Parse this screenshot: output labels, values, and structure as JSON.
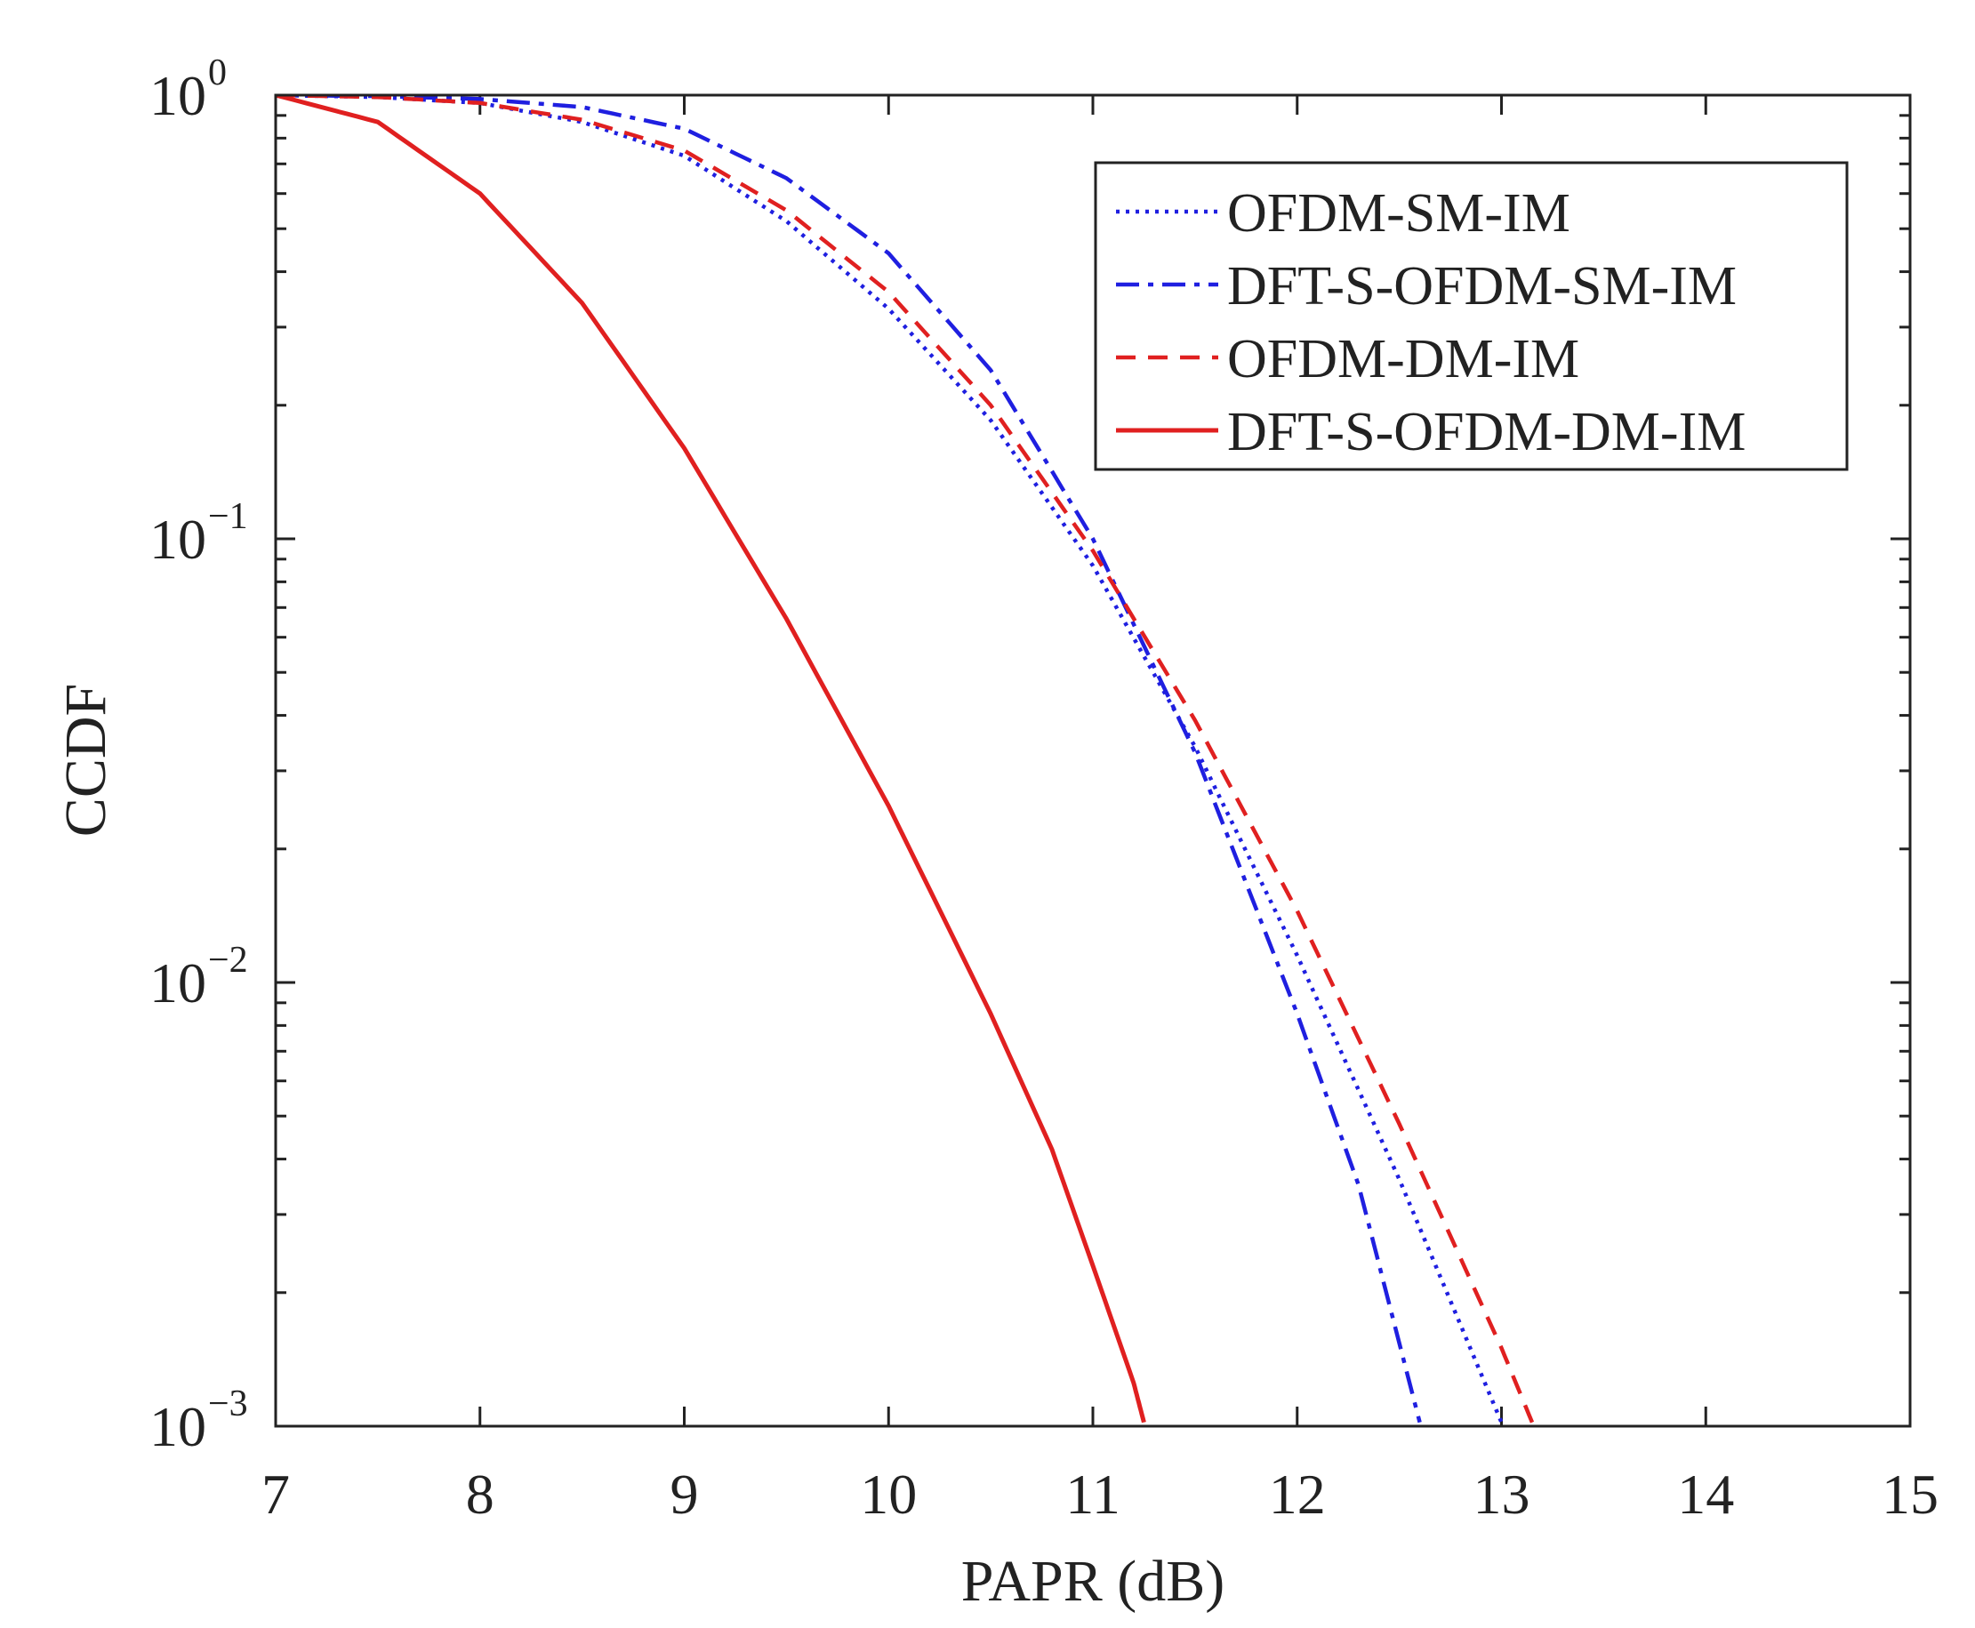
{
  "chart_data": {
    "type": "line",
    "xlabel": "PAPR (dB)",
    "ylabel": "CCDF",
    "xlim": [
      7,
      15
    ],
    "ylim": [
      0.001,
      1
    ],
    "yscale": "log",
    "grid": false,
    "legend_position": "top-right",
    "x_ticks": [
      "7",
      "8",
      "9",
      "10",
      "11",
      "12",
      "13",
      "14",
      "15"
    ],
    "y_ticks": [
      {
        "base": "10",
        "exp": "0",
        "value": 1
      },
      {
        "base": "10",
        "exp": "−1",
        "value": 0.1
      },
      {
        "base": "10",
        "exp": "−2",
        "value": 0.01
      },
      {
        "base": "10",
        "exp": "−3",
        "value": 0.001
      }
    ],
    "series": [
      {
        "name": "OFDM-SM-IM",
        "color": "#1f1fe0",
        "style": "dotted",
        "points": [
          [
            7.0,
            1.0
          ],
          [
            7.5,
            0.99
          ],
          [
            8.0,
            0.96
          ],
          [
            8.5,
            0.87
          ],
          [
            9.0,
            0.73
          ],
          [
            9.5,
            0.52
          ],
          [
            10.0,
            0.33
          ],
          [
            10.5,
            0.185
          ],
          [
            11.0,
            0.087
          ],
          [
            11.5,
            0.034
          ],
          [
            12.0,
            0.0115
          ],
          [
            12.5,
            0.0036
          ],
          [
            13.0,
            0.00102
          ]
        ]
      },
      {
        "name": "DFT-S-OFDM-SM-IM",
        "color": "#1f1fe0",
        "style": "dashdot",
        "points": [
          [
            7.0,
            1.0
          ],
          [
            7.5,
            0.995
          ],
          [
            8.0,
            0.98
          ],
          [
            8.5,
            0.94
          ],
          [
            9.0,
            0.84
          ],
          [
            9.5,
            0.65
          ],
          [
            10.0,
            0.44
          ],
          [
            10.5,
            0.24
          ],
          [
            11.0,
            0.1
          ],
          [
            11.5,
            0.033
          ],
          [
            12.0,
            0.0085
          ],
          [
            12.3,
            0.0035
          ],
          [
            12.6,
            0.00102
          ]
        ]
      },
      {
        "name": "OFDM-DM-IM",
        "color": "#e02020",
        "style": "dashed",
        "points": [
          [
            7.0,
            1.0
          ],
          [
            7.5,
            0.99
          ],
          [
            8.0,
            0.96
          ],
          [
            8.5,
            0.88
          ],
          [
            9.0,
            0.75
          ],
          [
            9.5,
            0.55
          ],
          [
            10.0,
            0.36
          ],
          [
            10.5,
            0.2
          ],
          [
            11.0,
            0.094
          ],
          [
            11.5,
            0.039
          ],
          [
            12.0,
            0.0145
          ],
          [
            12.5,
            0.0048
          ],
          [
            13.0,
            0.0015
          ],
          [
            13.15,
            0.00102
          ]
        ]
      },
      {
        "name": "DFT-S-OFDM-DM-IM",
        "color": "#e02020",
        "style": "solid",
        "points": [
          [
            7.0,
            1.0
          ],
          [
            7.5,
            0.87
          ],
          [
            8.0,
            0.6
          ],
          [
            8.5,
            0.34
          ],
          [
            9.0,
            0.16
          ],
          [
            9.5,
            0.066
          ],
          [
            10.0,
            0.025
          ],
          [
            10.5,
            0.0085
          ],
          [
            10.8,
            0.0042
          ],
          [
            11.0,
            0.0023
          ],
          [
            11.2,
            0.00125
          ],
          [
            11.25,
            0.00102
          ]
        ]
      }
    ]
  }
}
